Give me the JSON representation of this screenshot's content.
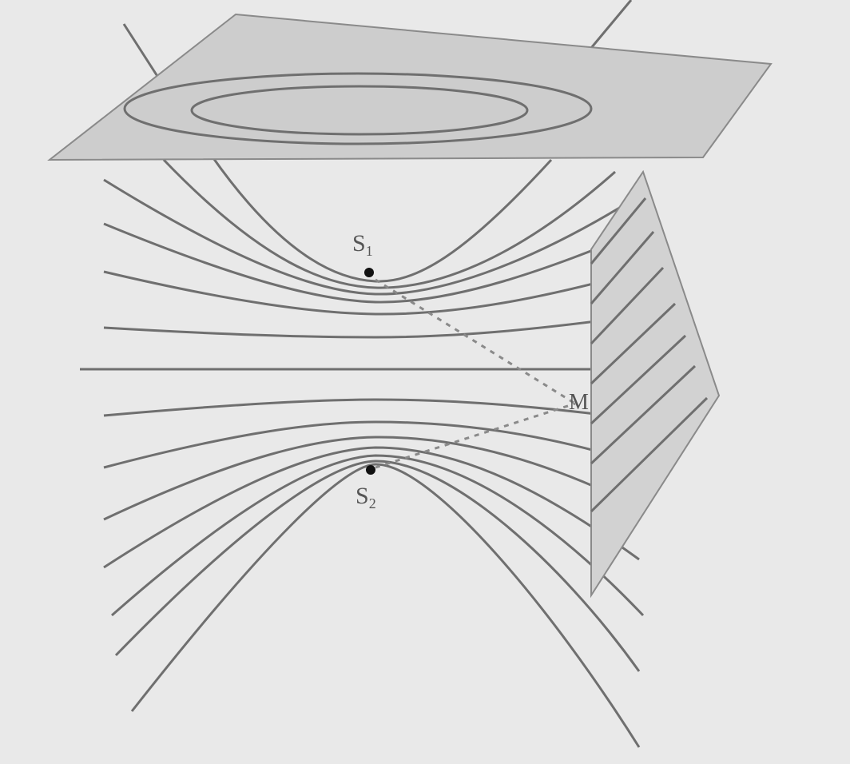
{
  "labels": {
    "source_1": "S",
    "source_1_sub": "1",
    "source_2": "S",
    "source_2_sub": "2",
    "point": "M"
  },
  "colors": {
    "background": "#e9e9e9",
    "plane_fill": "#cdcdcd",
    "line": "#6f6f6f",
    "dot": "#111111"
  }
}
